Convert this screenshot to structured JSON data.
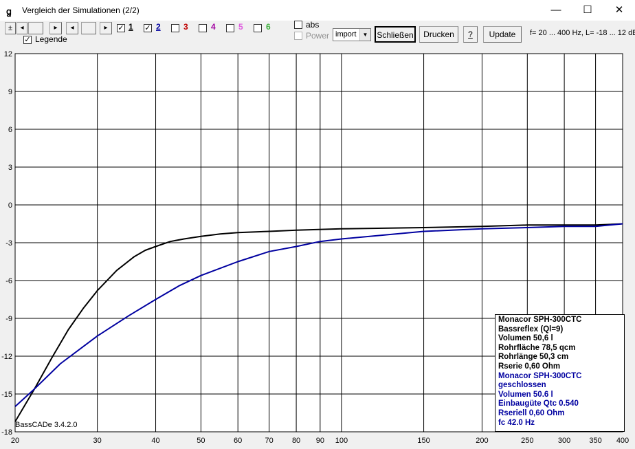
{
  "window": {
    "title": "Vergleich der Simulationen (2/2)",
    "minimize": "—",
    "maximize": "☐",
    "close": "✕"
  },
  "toolbar": {
    "plusminus": "±",
    "nav_first": "◂",
    "nav_prev": "▸",
    "nav_next": "◂",
    "nav_last": "▸",
    "legend_label": "Legende",
    "sims": [
      {
        "label": "1",
        "checked": true,
        "color": "#000000"
      },
      {
        "label": "2",
        "checked": true,
        "color": "#0000a0"
      },
      {
        "label": "3",
        "checked": false,
        "color": "#c00000"
      },
      {
        "label": "4",
        "checked": false,
        "color": "#a000a0"
      },
      {
        "label": "5",
        "checked": false,
        "color": "#e060e0"
      },
      {
        "label": "6",
        "checked": false,
        "color": "#40b040"
      }
    ],
    "abs_label": "abs",
    "power_label": "Power",
    "import_select": "import",
    "close_label": "Schließen",
    "print_label": "Drucken",
    "help_label": "?",
    "update_label": "Update",
    "range_info": "f= 20 ... 400 Hz, L= -18 ... 12 dB"
  },
  "chart_data": {
    "type": "line",
    "x_scale": "log",
    "xlim": [
      20,
      400
    ],
    "ylim": [
      -18,
      12
    ],
    "x_ticks": [
      20,
      30,
      40,
      50,
      60,
      70,
      80,
      90,
      100,
      150,
      200,
      250,
      300,
      350,
      400
    ],
    "y_ticks": [
      12,
      9,
      6,
      3,
      0,
      -3,
      -6,
      -9,
      -12,
      -15,
      -18
    ],
    "grid": true,
    "legend_position": "bottom-right",
    "series": [
      {
        "name": "Monacor SPH-300CTC",
        "color": "#000000",
        "x": [
          20,
          22,
          24,
          26,
          28,
          30,
          33,
          36,
          38,
          40,
          43,
          46,
          50,
          55,
          60,
          70,
          80,
          100,
          150,
          200,
          250,
          300,
          350,
          400
        ],
        "y": [
          -17.2,
          -14.6,
          -12.1,
          -9.9,
          -8.2,
          -6.8,
          -5.2,
          -4.1,
          -3.6,
          -3.3,
          -2.9,
          -2.7,
          -2.5,
          -2.3,
          -2.2,
          -2.1,
          -2.0,
          -1.9,
          -1.8,
          -1.7,
          -1.6,
          -1.6,
          -1.6,
          -1.5
        ]
      },
      {
        "name": "Monacor SPH-300CTC",
        "color": "#0000a0",
        "x": [
          20,
          22,
          25,
          30,
          35,
          40,
          45,
          50,
          60,
          70,
          80,
          90,
          100,
          150,
          200,
          250,
          300,
          350,
          400
        ],
        "y": [
          -16.0,
          -14.6,
          -12.6,
          -10.4,
          -8.8,
          -7.5,
          -6.4,
          -5.6,
          -4.5,
          -3.7,
          -3.3,
          -2.9,
          -2.7,
          -2.1,
          -1.9,
          -1.8,
          -1.7,
          -1.7,
          -1.5
        ]
      }
    ]
  },
  "legend": {
    "series1_lines": [
      "Monacor SPH-300CTC",
      "Bassreflex (Ql=9)",
      "Volumen 50,6 l",
      "Rohrfläche 78,5 qcm",
      "Rohrlänge 50,3 cm",
      "Rserie 0,60 Ohm"
    ],
    "series2_lines": [
      "Monacor SPH-300CTC",
      "geschlossen",
      "Volumen 50.6 l",
      "Einbaugüte Qtc 0.540",
      "Rseriell 0,60 Ohm",
      "fc 42.0 Hz"
    ]
  },
  "watermark": "BassCADe 3.4.2.0"
}
